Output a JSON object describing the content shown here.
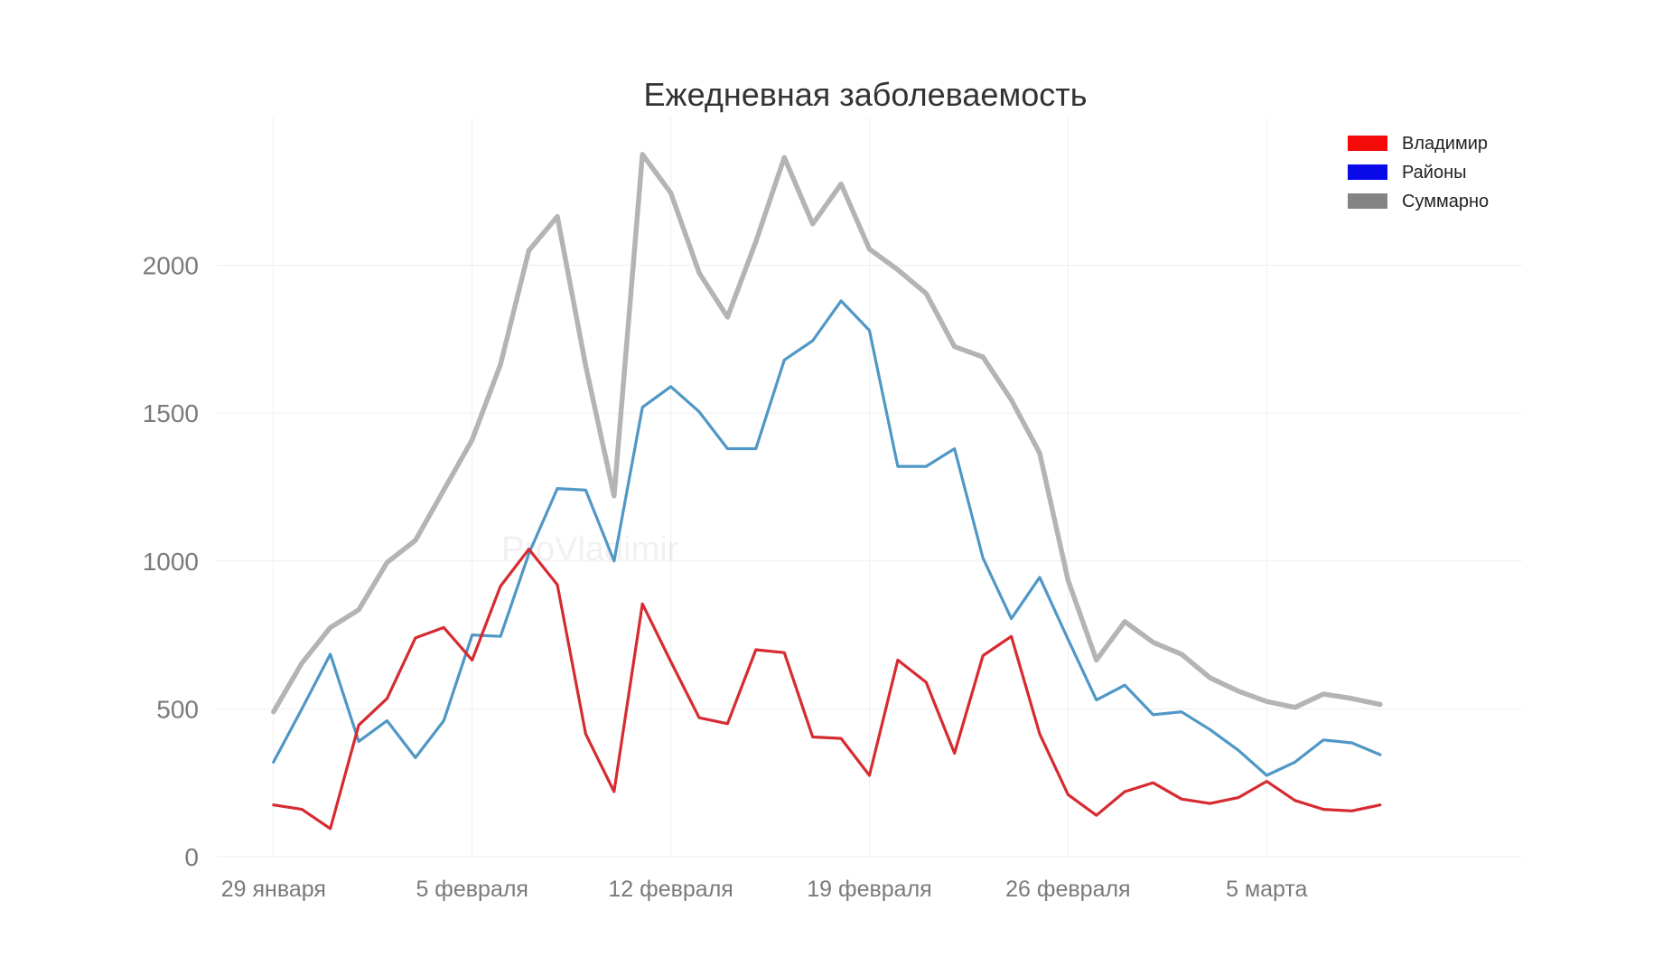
{
  "chart_data": {
    "type": "line",
    "title": "Ежедневная заболеваемость",
    "xlabel": "",
    "ylabel": "",
    "watermark": "ProVladimir",
    "x": [
      "2022-01-29",
      "2022-01-30",
      "2022-01-31",
      "2022-02-01",
      "2022-02-02",
      "2022-02-03",
      "2022-02-04",
      "2022-02-05",
      "2022-02-06",
      "2022-02-07",
      "2022-02-08",
      "2022-02-09",
      "2022-02-10",
      "2022-02-11",
      "2022-02-12",
      "2022-02-13",
      "2022-02-14",
      "2022-02-15",
      "2022-02-16",
      "2022-02-17",
      "2022-02-18",
      "2022-02-19",
      "2022-02-20",
      "2022-02-21",
      "2022-02-22",
      "2022-02-23",
      "2022-02-24",
      "2022-02-25",
      "2022-02-26",
      "2022-02-27",
      "2022-02-28",
      "2022-03-01",
      "2022-03-02",
      "2022-03-03",
      "2022-03-04",
      "2022-03-05",
      "2022-03-06",
      "2022-03-07",
      "2022-03-08",
      "2022-03-09"
    ],
    "x_ticks": [
      {
        "date": "2022-01-29",
        "label": "29 января"
      },
      {
        "date": "2022-02-05",
        "label": "5 февраля"
      },
      {
        "date": "2022-02-12",
        "label": "12 февраля"
      },
      {
        "date": "2022-02-19",
        "label": "19 февраля"
      },
      {
        "date": "2022-02-26",
        "label": "26 февраля"
      },
      {
        "date": "2022-03-05",
        "label": "5 марта"
      }
    ],
    "x_range": [
      "2022-01-27",
      "2022-03-14"
    ],
    "ylim": [
      0,
      2500
    ],
    "y_ticks": [
      0,
      500,
      1000,
      1500,
      2000
    ],
    "grid": true,
    "legend_position": "top-right",
    "series": [
      {
        "name": "Суммарно",
        "line_color": "#b4b4b4",
        "legend_color": "#848484",
        "values": [
          490,
          655,
          775,
          835,
          995,
          1070,
          1240,
          1410,
          1665,
          2050,
          2165,
          1660,
          1220,
          2375,
          2245,
          1975,
          1825,
          2080,
          2365,
          2140,
          2275,
          2055,
          1985,
          1905,
          1725,
          1690,
          1545,
          1365,
          935,
          665,
          795,
          725,
          685,
          605,
          560,
          525,
          505,
          550,
          535,
          515
        ]
      },
      {
        "name": "Районы",
        "line_color": "#4f97c5",
        "legend_color": "#0a0ae8",
        "values": [
          320,
          500,
          685,
          390,
          460,
          335,
          460,
          750,
          745,
          1025,
          1245,
          1240,
          1000,
          1520,
          1590,
          1505,
          1380,
          1380,
          1680,
          1745,
          1880,
          1780,
          1320,
          1320,
          1380,
          1010,
          805,
          945,
          735,
          530,
          580,
          480,
          490,
          430,
          360,
          275,
          320,
          395,
          385,
          345
        ]
      },
      {
        "name": "Владимир",
        "line_color": "#d62b31",
        "legend_color": "#f50a0a",
        "values": [
          175,
          160,
          95,
          445,
          535,
          740,
          775,
          665,
          915,
          1040,
          920,
          415,
          220,
          855,
          660,
          470,
          450,
          700,
          690,
          405,
          400,
          275,
          665,
          590,
          350,
          680,
          745,
          415,
          210,
          140,
          220,
          250,
          195,
          180,
          200,
          255,
          190,
          160,
          155,
          175
        ]
      }
    ],
    "legend_order": [
      "Владимир",
      "Районы",
      "Суммарно"
    ]
  }
}
